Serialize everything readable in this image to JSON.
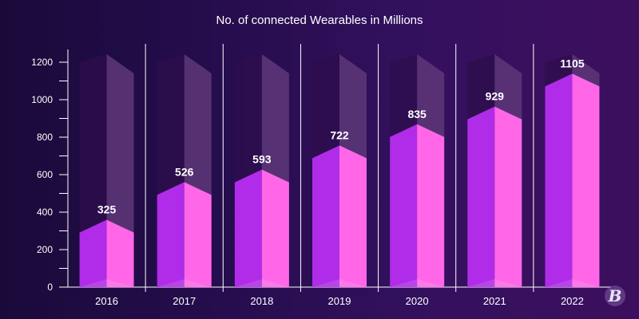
{
  "chart_data": {
    "type": "bar",
    "title": "No. of connected Wearables in Millions",
    "xlabel": "",
    "ylabel": "",
    "categories": [
      "2016",
      "2017",
      "2018",
      "2019",
      "2020",
      "2021",
      "2022"
    ],
    "values": [
      325,
      526,
      593,
      722,
      835,
      929,
      1105
    ],
    "ylim": [
      0,
      1200
    ],
    "yticks": [
      0,
      200,
      400,
      600,
      800,
      1000,
      1200
    ],
    "data_labels": true,
    "grid": false,
    "legend": "none",
    "style": "3d-prism",
    "colors": {
      "bar_left": "#b02ce8",
      "bar_right": "#ff66e8",
      "ghost_left": "#2e0d4c",
      "ghost_right": "#5b3577",
      "axis": "#ffffff",
      "text": "#ffffff"
    }
  },
  "brand": {
    "logo_icon": "brand-b-icon"
  }
}
